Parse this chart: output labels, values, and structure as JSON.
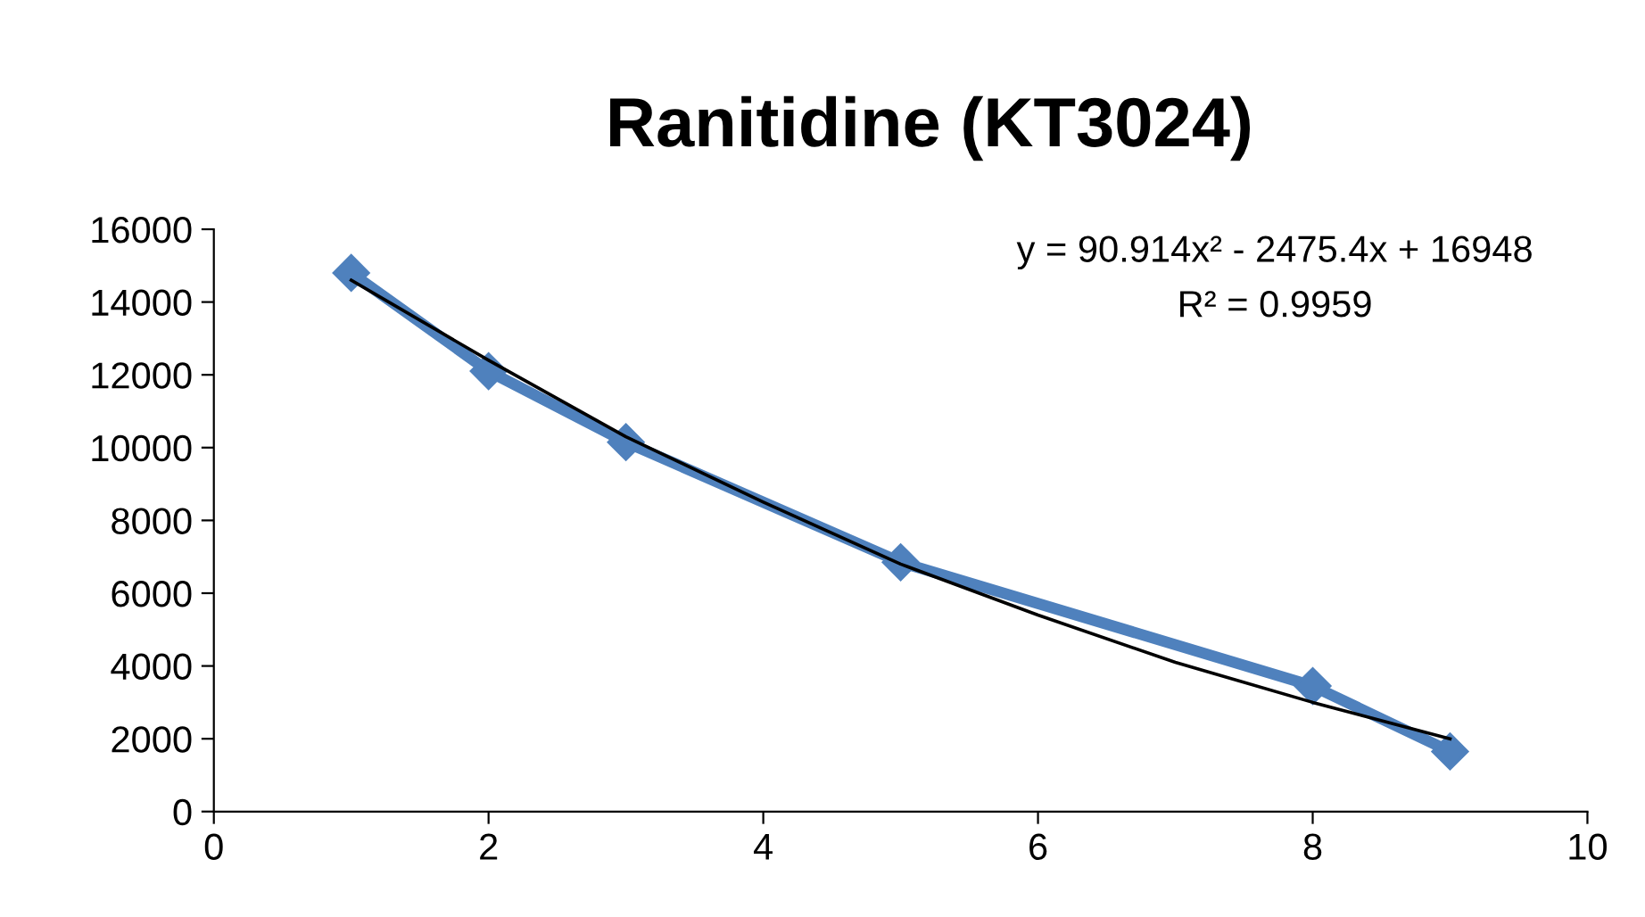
{
  "chart_data": {
    "type": "line",
    "title": "Ranitidine (KT3024)",
    "x": [
      1,
      2,
      3,
      5,
      8,
      9
    ],
    "series": [
      {
        "color": "#4f81bd",
        "values": [
          14800,
          12100,
          10150,
          6850,
          3450,
          1650
        ],
        "marker": "diamond"
      },
      {
        "type": "line",
        "color": "#000000",
        "x": [
          1,
          2,
          3,
          4,
          5,
          6,
          7,
          8,
          9
        ],
        "values": [
          14600,
          12400,
          10300,
          8500,
          6800,
          5400,
          4100,
          3000,
          2000
        ],
        "marker": "none"
      }
    ],
    "annotations": [
      "y = 90.914x² - 2475.4x + 16948",
      "R² = 0.9959"
    ],
    "xlim": [
      0,
      10
    ],
    "xticks": [
      0,
      2,
      4,
      6,
      8,
      10
    ],
    "ylim": [
      0,
      16000
    ],
    "yticks": [
      0,
      2000,
      4000,
      6000,
      8000,
      10000,
      12000,
      14000,
      16000
    ],
    "grid": false,
    "legend": false,
    "line_style": "solid"
  }
}
